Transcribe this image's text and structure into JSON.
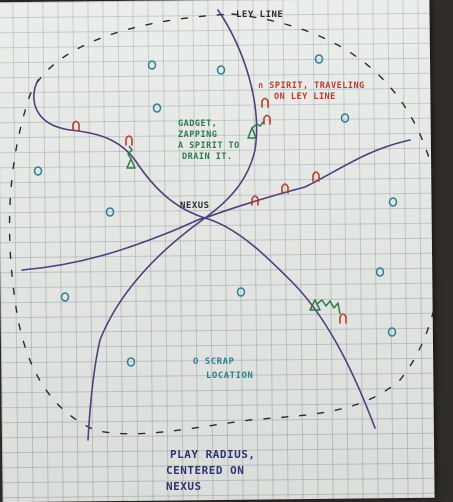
{
  "labels": {
    "ley_line": "LEY LINE",
    "spirit": [
      "∩ SPIRIT, TRAVELING",
      "ON LEY LINE"
    ],
    "gadget": [
      "GADGET,",
      "ZAPPING",
      "A SPIRIT TO",
      "DRAIN IT."
    ],
    "nexus": "NEXUS",
    "scrap": [
      "O SCRAP",
      "LOCATION"
    ],
    "radius": [
      "PLAY RADIUS,",
      "CENTERED ON",
      "NEXUS"
    ]
  },
  "colors": {
    "purple": "#4f3f7a",
    "red": "#c0392b",
    "green": "#2e7a4a",
    "teal": "#2e7f95",
    "navy": "#2b3570",
    "ink": "#2b2b2b"
  },
  "symbols": {
    "spirit": "∩",
    "gadget": "triangle",
    "scrap": "O"
  }
}
